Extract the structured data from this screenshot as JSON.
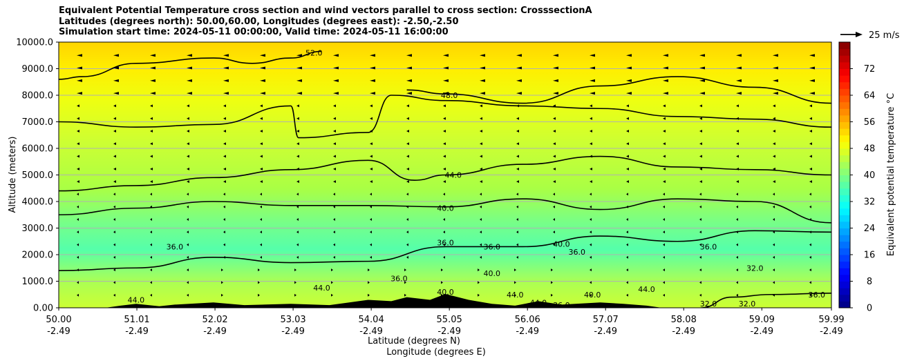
{
  "chart_data": {
    "type": "contour",
    "title_lines": [
      "Equivalent Potential Temperature cross section and wind vectors parallel to cross section: CrosssectionA",
      "Latitudes (degrees north): 50.00,60.00, Longitudes (degrees east): -2.50,-2.50",
      "Simulation start time: 2024-05-11 00:00:00, Valid time: 2024-05-11 16:00:00"
    ],
    "ylabel": "Altitude (meters)",
    "xlabel_lat": "Latitude (degrees N)",
    "xlabel_lon": "Longitude (degrees E)",
    "ylim": [
      0,
      10000
    ],
    "y_ticks": [
      "0.00",
      "1000.0",
      "2000.0",
      "3000.0",
      "4000.0",
      "5000.0",
      "6000.0",
      "7000.0",
      "8000.0",
      "9000.0",
      "10000.0"
    ],
    "x_ticks": [
      {
        "lat": "50.00",
        "lon": "-2.49"
      },
      {
        "lat": "51.01",
        "lon": "-2.49"
      },
      {
        "lat": "52.02",
        "lon": "-2.49"
      },
      {
        "lat": "53.03",
        "lon": "-2.49"
      },
      {
        "lat": "54.04",
        "lon": "-2.49"
      },
      {
        "lat": "55.05",
        "lon": "-2.49"
      },
      {
        "lat": "56.06",
        "lon": "-2.49"
      },
      {
        "lat": "57.07",
        "lon": "-2.49"
      },
      {
        "lat": "58.08",
        "lon": "-2.49"
      },
      {
        "lat": "59.09",
        "lon": "-2.49"
      },
      {
        "lat": "59.99",
        "lon": "-2.49"
      }
    ],
    "grid": "horizontal",
    "colorbar": {
      "label": "Equivalent potential temperature °C",
      "range": [
        0,
        80
      ],
      "ticks": [
        "0",
        "8",
        "16",
        "24",
        "32",
        "40",
        "48",
        "56",
        "64",
        "72"
      ],
      "colors": [
        "#00007f",
        "#0000ff",
        "#007fff",
        "#00ffff",
        "#7fff7f",
        "#ffff00",
        "#ff7f00",
        "#ff0000",
        "#7f0000"
      ]
    },
    "quiver_key": "25 m/s",
    "contour_lines": [
      {
        "level": 32,
        "points": [
          [
            58.3,
            0
          ],
          [
            58.7,
            400
          ],
          [
            59.2,
            500
          ],
          [
            59.99,
            550
          ]
        ]
      },
      {
        "level": 36,
        "points": [
          [
            50,
            1400
          ],
          [
            51,
            1500
          ],
          [
            52,
            1900
          ],
          [
            53,
            1700
          ],
          [
            54,
            1750
          ],
          [
            55,
            2300
          ],
          [
            56,
            2300
          ],
          [
            57,
            2700
          ],
          [
            58,
            2500
          ],
          [
            59,
            2900
          ],
          [
            59.99,
            2850
          ]
        ]
      },
      {
        "level": 40,
        "points": [
          [
            50,
            3500
          ],
          [
            51,
            3750
          ],
          [
            52,
            4000
          ],
          [
            53,
            3850
          ],
          [
            54,
            3850
          ],
          [
            55,
            3800
          ],
          [
            56,
            4100
          ],
          [
            57,
            3700
          ],
          [
            58,
            4100
          ],
          [
            59,
            4000
          ],
          [
            59.99,
            3200
          ]
        ]
      },
      {
        "level": 44,
        "points": [
          [
            50,
            4400
          ],
          [
            51,
            4600
          ],
          [
            52,
            4900
          ],
          [
            53,
            5200
          ],
          [
            54,
            5550
          ],
          [
            54.6,
            4800
          ],
          [
            55,
            5000
          ],
          [
            56,
            5400
          ],
          [
            57,
            5700
          ],
          [
            58,
            5300
          ],
          [
            59,
            5200
          ],
          [
            59.99,
            5000
          ]
        ]
      },
      {
        "level": 48,
        "points": [
          [
            50,
            7000
          ],
          [
            51,
            6800
          ],
          [
            52,
            6900
          ],
          [
            53,
            7600
          ],
          [
            53.1,
            6400
          ],
          [
            54,
            6600
          ],
          [
            54.3,
            8000
          ],
          [
            55,
            7800
          ],
          [
            56,
            7600
          ],
          [
            57,
            7500
          ],
          [
            58,
            7200
          ],
          [
            59,
            7100
          ],
          [
            59.99,
            6800
          ]
        ]
      },
      {
        "level": 48,
        "points": [
          [
            54.5,
            8200
          ],
          [
            55,
            8050
          ],
          [
            56,
            7700
          ],
          [
            57,
            8350
          ],
          [
            58,
            8700
          ],
          [
            59,
            8300
          ],
          [
            59.99,
            7700
          ]
        ]
      },
      {
        "level": 52,
        "points": [
          [
            50,
            8600
          ],
          [
            50.3,
            8700
          ],
          [
            51,
            9200
          ],
          [
            52,
            9400
          ],
          [
            52.5,
            9200
          ],
          [
            53,
            9400
          ],
          [
            53.4,
            9650
          ]
        ]
      }
    ],
    "contour_labels": [
      {
        "text": "52.0",
        "lat": 53.3,
        "alt": 9600
      },
      {
        "text": "48.0",
        "lat": 55.05,
        "alt": 8000
      },
      {
        "text": "44.0",
        "lat": 55.1,
        "alt": 5000
      },
      {
        "text": "40.0",
        "lat": 55.0,
        "alt": 3750
      },
      {
        "text": "36.0",
        "lat": 55.0,
        "alt": 2450
      },
      {
        "text": "36.0",
        "lat": 51.5,
        "alt": 2300
      },
      {
        "text": "36.0",
        "lat": 55.6,
        "alt": 2300
      },
      {
        "text": "36.0",
        "lat": 54.4,
        "alt": 1100
      },
      {
        "text": "40.0",
        "lat": 55.0,
        "alt": 600
      },
      {
        "text": "40.0",
        "lat": 55.6,
        "alt": 1300
      },
      {
        "text": "40.0",
        "lat": 56.5,
        "alt": 2400
      },
      {
        "text": "36.0",
        "lat": 56.7,
        "alt": 2100
      },
      {
        "text": "36.0",
        "lat": 58.4,
        "alt": 2300
      },
      {
        "text": "32.0",
        "lat": 59.0,
        "alt": 1500
      },
      {
        "text": "36.0",
        "lat": 59.8,
        "alt": 500
      },
      {
        "text": "40.0",
        "lat": 56.9,
        "alt": 500
      },
      {
        "text": "44.0",
        "lat": 53.4,
        "alt": 750
      },
      {
        "text": "44.0",
        "lat": 55.9,
        "alt": 500
      },
      {
        "text": "44.0",
        "lat": 56.2,
        "alt": 200
      },
      {
        "text": "44.0",
        "lat": 57.6,
        "alt": 700
      },
      {
        "text": "32.0",
        "lat": 58.4,
        "alt": 150
      },
      {
        "text": "32.0",
        "lat": 58.9,
        "alt": 150
      },
      {
        "text": "44.0",
        "lat": 51.0,
        "alt": 300
      },
      {
        "text": "36.0",
        "lat": 56.5,
        "alt": 100
      }
    ],
    "terrain": [
      [
        50.6,
        0
      ],
      [
        50.8,
        80
      ],
      [
        51.0,
        150
      ],
      [
        51.3,
        60
      ],
      [
        51.5,
        120
      ],
      [
        52.0,
        200
      ],
      [
        52.4,
        100
      ],
      [
        53.0,
        150
      ],
      [
        53.5,
        100
      ],
      [
        54.0,
        300
      ],
      [
        54.3,
        250
      ],
      [
        54.5,
        400
      ],
      [
        54.8,
        300
      ],
      [
        55.0,
        520
      ],
      [
        55.3,
        300
      ],
      [
        55.6,
        150
      ],
      [
        55.9,
        80
      ],
      [
        56.2,
        250
      ],
      [
        56.5,
        120
      ],
      [
        57.0,
        200
      ],
      [
        57.3,
        150
      ],
      [
        57.6,
        80
      ],
      [
        57.8,
        0
      ]
    ]
  }
}
